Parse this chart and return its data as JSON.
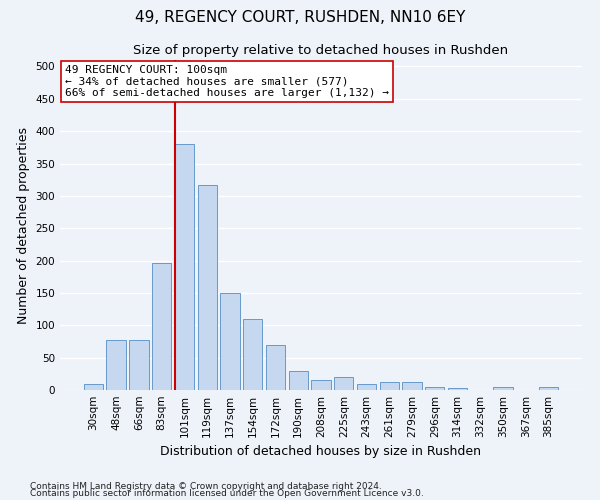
{
  "title": "49, REGENCY COURT, RUSHDEN, NN10 6EY",
  "subtitle": "Size of property relative to detached houses in Rushden",
  "xlabel": "Distribution of detached houses by size in Rushden",
  "ylabel": "Number of detached properties",
  "categories": [
    "30sqm",
    "48sqm",
    "66sqm",
    "83sqm",
    "101sqm",
    "119sqm",
    "137sqm",
    "154sqm",
    "172sqm",
    "190sqm",
    "208sqm",
    "225sqm",
    "243sqm",
    "261sqm",
    "279sqm",
    "296sqm",
    "314sqm",
    "332sqm",
    "350sqm",
    "367sqm",
    "385sqm"
  ],
  "values": [
    10,
    78,
    78,
    197,
    380,
    317,
    150,
    109,
    70,
    30,
    15,
    20,
    10,
    13,
    13,
    5,
    3,
    0,
    4,
    0,
    4
  ],
  "bar_color": "#c5d8ef",
  "bar_edgecolor": "#6699cc",
  "vline_x_index": 4,
  "vline_color": "#cc0000",
  "annotation_line1": "49 REGENCY COURT: 100sqm",
  "annotation_line2": "← 34% of detached houses are smaller (577)",
  "annotation_line3": "66% of semi-detached houses are larger (1,132) →",
  "annotation_box_facecolor": "#ffffff",
  "annotation_box_edgecolor": "#cc0000",
  "ylim": [
    0,
    510
  ],
  "yticks": [
    0,
    50,
    100,
    150,
    200,
    250,
    300,
    350,
    400,
    450,
    500
  ],
  "footnote1": "Contains HM Land Registry data © Crown copyright and database right 2024.",
  "footnote2": "Contains public sector information licensed under the Open Government Licence v3.0.",
  "background_color": "#eef2f9",
  "grid_color": "#ffffff",
  "title_fontsize": 11,
  "subtitle_fontsize": 9.5,
  "xlabel_fontsize": 9,
  "ylabel_fontsize": 9,
  "tick_fontsize": 7.5,
  "annotation_fontsize": 8,
  "footnote_fontsize": 6.5
}
